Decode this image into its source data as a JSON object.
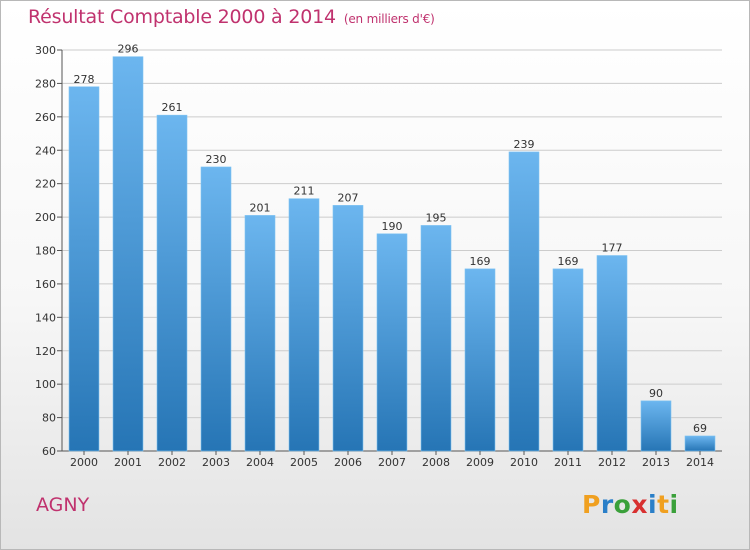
{
  "title": "Résultat Comptable 2000 à 2014",
  "subtitle": "(en milliers d'€)",
  "place": "AGNY",
  "logo": {
    "letters": [
      "P",
      "r",
      "o",
      "x",
      "i",
      "t",
      "i"
    ],
    "colors": [
      "#f0a020",
      "#2a7fc8",
      "#3aa03a",
      "#d83030",
      "#2a7fc8",
      "#f0a020",
      "#3aa03a"
    ]
  },
  "colors": {
    "bar_top": "#6cb6ef",
    "bar_bottom": "#2675b5",
    "title": "#c0326e",
    "grid": "#cccccc"
  },
  "chart_data": {
    "type": "bar",
    "title": "Résultat Comptable 2000 à 2014",
    "subtitle": "(en milliers d'€)",
    "categories": [
      "2000",
      "2001",
      "2002",
      "2003",
      "2004",
      "2005",
      "2006",
      "2007",
      "2008",
      "2009",
      "2010",
      "2011",
      "2012",
      "2013",
      "2014"
    ],
    "values": [
      278,
      296,
      261,
      230,
      201,
      211,
      207,
      190,
      195,
      169,
      239,
      169,
      177,
      90,
      69
    ],
    "ylim": [
      60,
      300
    ],
    "yticks": [
      60,
      80,
      100,
      120,
      140,
      160,
      180,
      200,
      220,
      240,
      260,
      280,
      300
    ],
    "grid": true,
    "xlabel": "",
    "ylabel": ""
  }
}
